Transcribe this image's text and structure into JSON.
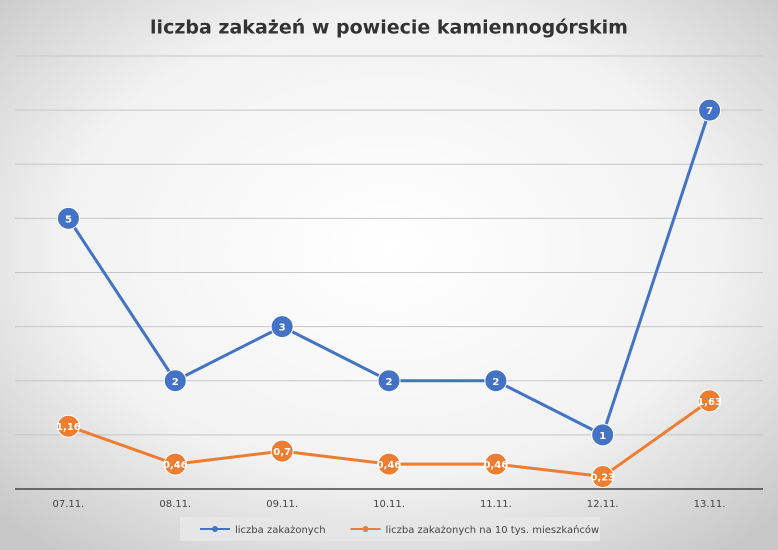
{
  "chart_data": {
    "type": "line",
    "title": "liczba zakażeń w powiecie kamiennogórskim",
    "categories": [
      "07.11.",
      "08.11.",
      "09.11.",
      "10.11.",
      "11.11.",
      "12.11.",
      "13.11."
    ],
    "series": [
      {
        "name": "liczba zakażonych",
        "color": "#4472c4",
        "values": [
          5,
          2,
          3,
          2,
          2,
          1,
          7
        ]
      },
      {
        "name": "liczba zakażonych na 10 tys. mieszkańców",
        "color": "#ed7d31",
        "values": [
          1.16,
          0.46,
          0.7,
          0.46,
          0.46,
          0.23,
          1.63
        ],
        "value_labels": [
          "1,16",
          "0,46",
          "0,7",
          "0,46",
          "0,46",
          "0,23",
          "1,63"
        ]
      }
    ],
    "ylim": [
      0,
      8
    ],
    "yticks": [
      0,
      1,
      2,
      3,
      4,
      5,
      6,
      7,
      8
    ],
    "grid": true,
    "legend": "bottom"
  }
}
